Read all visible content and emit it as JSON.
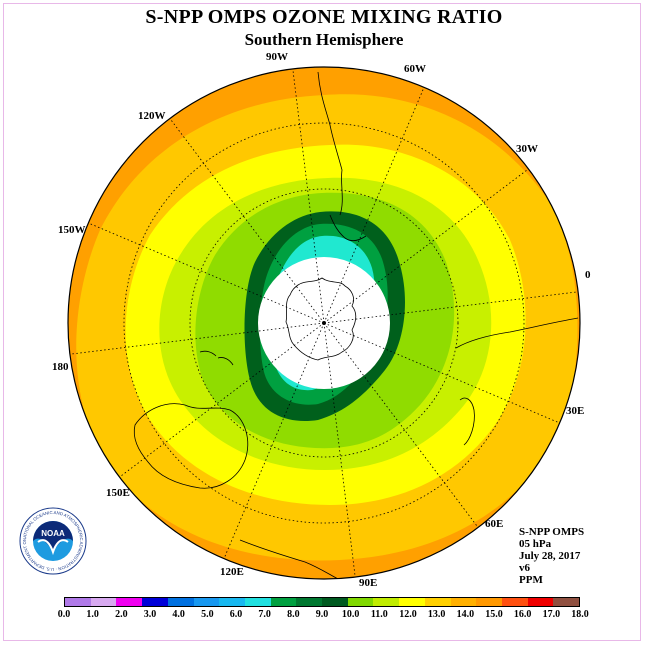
{
  "title": "S-NPP OMPS OZONE MIXING RATIO",
  "subtitle": "Southern Hemisphere",
  "lon_labels": {
    "w90": "90W",
    "w60": "60W",
    "w30": "30W",
    "e0": "0",
    "e30": "30E",
    "e60": "60E",
    "e90": "90E",
    "e120": "120E",
    "e150": "150E",
    "d180": "180",
    "w150": "150W",
    "w120": "120W"
  },
  "info": {
    "instrument": "S-NPP OMPS",
    "level": "05 hPa",
    "date": "July 28, 2017",
    "version": "v6",
    "units": "PPM"
  },
  "logo": {
    "text": "NOAA",
    "ring_text": "NATIONAL OCEANIC AND ATMOSPHERIC ADMINISTRATION · U.S. DEPARTMENT OF COMMERCE"
  },
  "colorbar": {
    "colors": [
      "#b07ae8",
      "#d8aaf0",
      "#f000f0",
      "#0000d8",
      "#0070e0",
      "#1898f0",
      "#18b8f0",
      "#20e0e0",
      "#00a040",
      "#007830",
      "#005a20",
      "#80d800",
      "#c0ec00",
      "#ffff00",
      "#ffd000",
      "#ffb000",
      "#ff9800",
      "#ff5010",
      "#f00000",
      "#905040"
    ],
    "ticks": [
      "0.0",
      "1.0",
      "2.0",
      "3.0",
      "4.0",
      "5.0",
      "6.0",
      "7.0",
      "8.0",
      "9.0",
      "10.0",
      "11.0",
      "12.0",
      "13.0",
      "14.0",
      "15.0",
      "16.0",
      "17.0",
      "18.0"
    ]
  },
  "colors": {
    "band_14_15": "#ffa000",
    "band_13_14": "#ffc800",
    "band_12_13": "#ffff00",
    "band_11_12": "#c8f000",
    "band_10_11": "#90dc00",
    "band_9_10": "#00601c",
    "band_8_9": "#00a040",
    "band_7_8": "#20e8d0",
    "polar_night": "#ffffff"
  }
}
